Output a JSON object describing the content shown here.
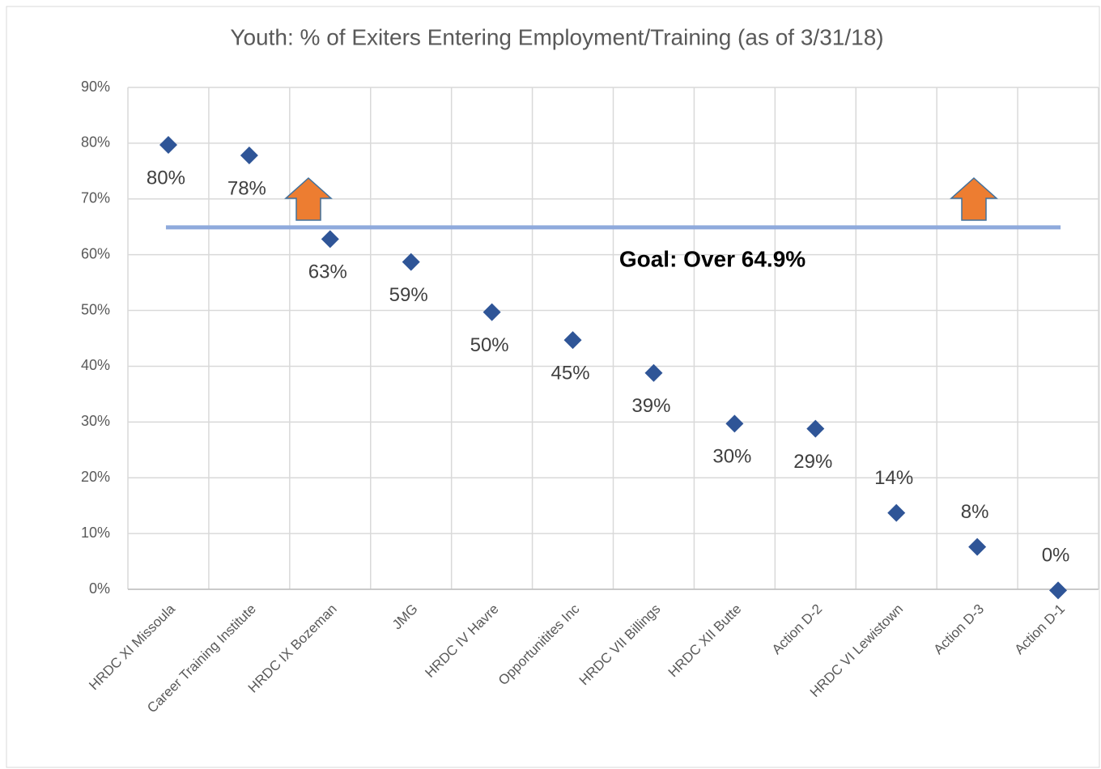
{
  "chart_data": {
    "type": "scatter",
    "title": "Youth: % of Exiters Entering Employment/Training (as of 3/31/18)",
    "categories": [
      "HRDC XI Missoula",
      "Career Training Institute",
      "HRDC IX Bozeman",
      "JMG",
      "HRDC IV Havre",
      "Opportunitites Inc",
      "HRDC VII Billings",
      "HRDC XII Butte",
      "Action D-2",
      "HRDC VI Lewistown",
      "Action D-3",
      "Action D-1"
    ],
    "values": [
      79.7,
      77.8,
      62.8,
      58.7,
      49.7,
      44.7,
      38.8,
      29.7,
      28.8,
      13.7,
      7.6,
      -0.2
    ],
    "value_labels": [
      "80%",
      "78%",
      "63%",
      "59%",
      "50%",
      "45%",
      "39%",
      "30%",
      "29%",
      "14%",
      "8%",
      "0%"
    ],
    "color": "#2f5597",
    "ylim": [
      0,
      90
    ],
    "yticks": [
      {
        "value": 0,
        "label": "0%"
      },
      {
        "value": 10,
        "label": "10%"
      },
      {
        "value": 20,
        "label": "20%"
      },
      {
        "value": 30,
        "label": "30%"
      },
      {
        "value": 40,
        "label": "40%"
      },
      {
        "value": 50,
        "label": "50%"
      },
      {
        "value": 60,
        "label": "60%"
      },
      {
        "value": 70,
        "label": "70%"
      },
      {
        "value": 80,
        "label": "80%"
      },
      {
        "value": 90,
        "label": "90%"
      }
    ],
    "grid": true,
    "goal": {
      "value": 64.9,
      "label": "Goal: Over 64.9%",
      "color": "#8faadc"
    }
  }
}
